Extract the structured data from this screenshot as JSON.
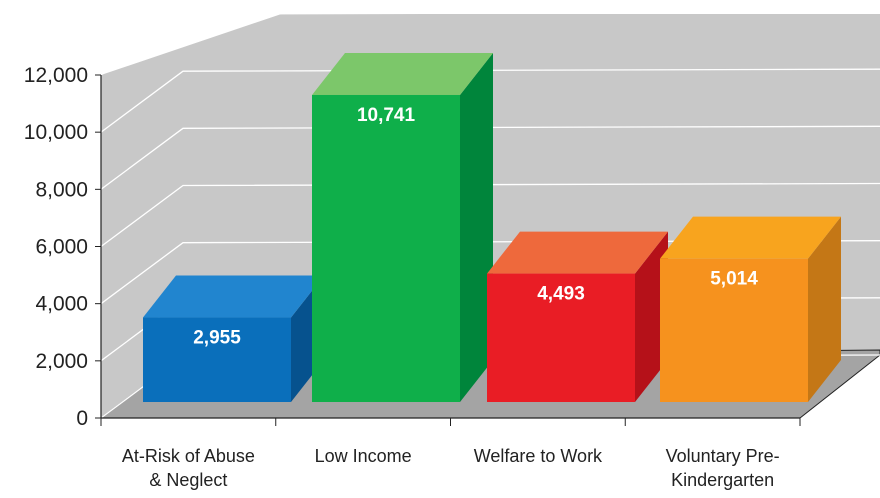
{
  "chart_data": {
    "type": "bar",
    "style": "3d",
    "categories": [
      [
        "At-Risk of Abuse",
        "& Neglect"
      ],
      [
        "Low Income"
      ],
      [
        "Welfare to Work"
      ],
      [
        "Voluntary Pre-",
        "Kindergarten"
      ]
    ],
    "values": [
      2955,
      10741,
      4493,
      5014
    ],
    "value_labels": [
      "2,955",
      "10,741",
      "4,493",
      "5,014"
    ],
    "ylim": [
      0,
      12000
    ],
    "yticks": [
      0,
      2000,
      4000,
      6000,
      8000,
      10000,
      12000
    ],
    "ytick_labels": [
      "0",
      "2,000",
      "4,000",
      "6,000",
      "8,000",
      "10,000",
      "12,000"
    ],
    "grid": true,
    "bar_colors": [
      {
        "front": "#0a6fbb",
        "top": "#2185cf",
        "side": "#06528e"
      },
      {
        "front": "#0faf4a",
        "top": "#7cc76a",
        "side": "#00853b"
      },
      {
        "front": "#e91d25",
        "top": "#ee693c",
        "side": "#b51119"
      },
      {
        "front": "#f6921e",
        "top": "#f8a41e",
        "side": "#c47716"
      }
    ],
    "wall_color": "#c8c8c8",
    "floor_color": "#a4a4a4"
  }
}
